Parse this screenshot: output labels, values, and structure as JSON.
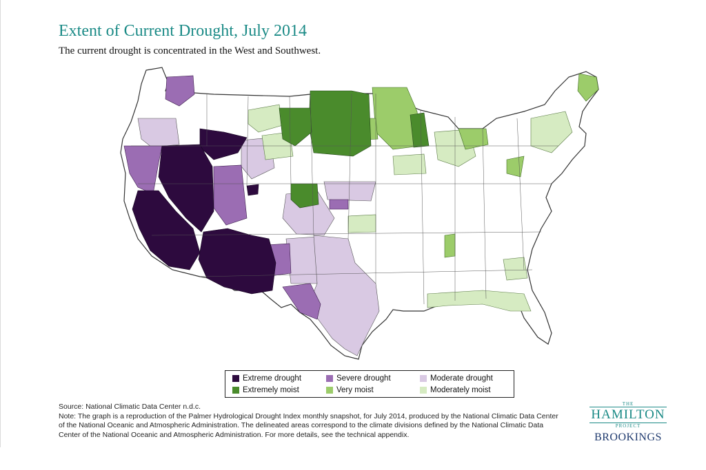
{
  "title": "Extent of Current Drought, July 2014",
  "subtitle": "The current drought is concentrated in the West and Southwest.",
  "legend": [
    {
      "label": "Extreme drought",
      "color": "#2d0a3e"
    },
    {
      "label": "Severe drought",
      "color": "#9b6db3"
    },
    {
      "label": "Moderate drought",
      "color": "#d9c9e3"
    },
    {
      "label": "Extremely moist",
      "color": "#4a8b2c"
    },
    {
      "label": "Very moist",
      "color": "#9ccc6a"
    },
    {
      "label": "Moderately moist",
      "color": "#d6ebc2"
    }
  ],
  "source": "Source: National Climatic Data Center n.d.c.",
  "note": "Note: The graph is a reproduction of the Palmer Hydrological Drought Index monthly snapshot, for July 2014, produced by the National Climatic Data Center of the National Oceanic and Atmospheric Administration. The delineated areas correspond to the climate divisions defined by the National Climatic Data Center of the National Oceanic and Atmospheric Administration.  For more details, see the technical appendix.",
  "logo": {
    "the": "THE",
    "hamilton": "HAMILTON",
    "project": "PROJECT",
    "brookings": "BROOKINGS"
  },
  "regions": [
    {
      "name": "california-extreme",
      "category": "Extreme drought"
    },
    {
      "name": "nevada-extreme",
      "category": "Extreme drought"
    },
    {
      "name": "arizona-extreme",
      "category": "Extreme drought"
    },
    {
      "name": "oregon-idaho-extreme",
      "category": "Extreme drought"
    },
    {
      "name": "california-coast-severe",
      "category": "Severe drought"
    },
    {
      "name": "oregon-severe",
      "category": "Severe drought"
    },
    {
      "name": "utah-severe",
      "category": "Severe drought"
    },
    {
      "name": "new-mexico-severe",
      "category": "Severe drought"
    },
    {
      "name": "west-texas-severe",
      "category": "Severe drought"
    },
    {
      "name": "kansas-severe",
      "category": "Severe drought"
    },
    {
      "name": "texas-moderate",
      "category": "Moderate drought"
    },
    {
      "name": "new-mexico-moderate",
      "category": "Moderate drought"
    },
    {
      "name": "colorado-moderate",
      "category": "Moderate drought"
    },
    {
      "name": "idaho-moderate",
      "category": "Moderate drought"
    },
    {
      "name": "oregon-moderate",
      "category": "Moderate drought"
    },
    {
      "name": "dakotas-extremely-moist",
      "category": "Extremely moist"
    },
    {
      "name": "montana-extremely-moist",
      "category": "Extremely moist"
    },
    {
      "name": "colorado-extremely-moist",
      "category": "Extremely moist"
    },
    {
      "name": "wisconsin-extremely-moist",
      "category": "Extremely moist"
    },
    {
      "name": "minnesota-very-moist",
      "category": "Very moist"
    },
    {
      "name": "michigan-very-moist",
      "category": "Very moist"
    },
    {
      "name": "mississippi-very-moist",
      "category": "Very moist"
    },
    {
      "name": "maine-very-moist",
      "category": "Very moist"
    },
    {
      "name": "gulf-moderately-moist",
      "category": "Moderately moist"
    },
    {
      "name": "northeast-moderately-moist",
      "category": "Moderately moist"
    },
    {
      "name": "montana-moderately-moist",
      "category": "Moderately moist"
    },
    {
      "name": "great-lakes-moderately-moist",
      "category": "Moderately moist"
    }
  ]
}
